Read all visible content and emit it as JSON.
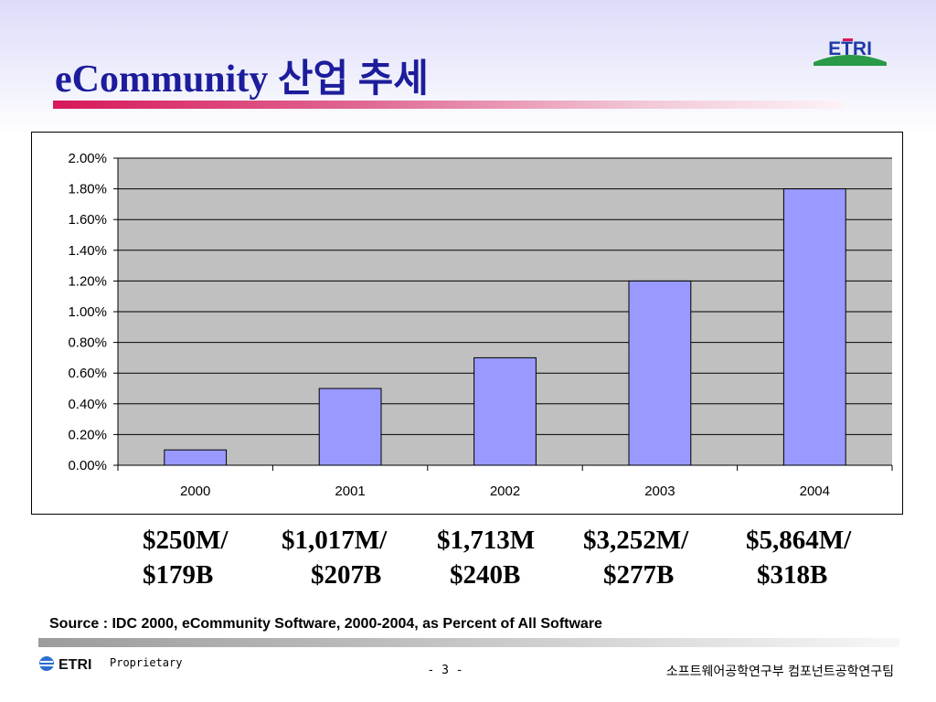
{
  "slide": {
    "title": "eCommunity 산업 추세",
    "logo_text": "ETRI",
    "source": "Source : IDC 2000,  eCommunity Software, 2000-2004, as Percent of All Software",
    "footer": {
      "logo_text": "ETRI",
      "proprietary": "Proprietary",
      "page_number": "- 3 -",
      "organization": "소프트웨어공학연구부  컴포넌트공학연구팀"
    }
  },
  "colors": {
    "title": "#1c1c9c",
    "bar_fill": "#9999ff",
    "plot_background": "#c0c0c0",
    "accent_bar": "#d8185a"
  },
  "chart_data": {
    "type": "bar",
    "categories": [
      "2000",
      "2001",
      "2002",
      "2003",
      "2004"
    ],
    "values": [
      0.1,
      0.5,
      0.7,
      1.2,
      1.8
    ],
    "ylim": [
      0,
      2.0
    ],
    "yticks": [
      "0.00%",
      "0.20%",
      "0.40%",
      "0.60%",
      "0.80%",
      "1.00%",
      "1.20%",
      "1.40%",
      "1.60%",
      "1.80%",
      "2.00%"
    ],
    "grid": true,
    "legend": "none",
    "annotations": [
      {
        "line1": "$250M/",
        "line2": "$179B"
      },
      {
        "line1": "$1,017M/",
        "line2": "$207B"
      },
      {
        "line1": "$1,713M",
        "line2": "$240B"
      },
      {
        "line1": "$3,252M/",
        "line2": "$277B"
      },
      {
        "line1": "$5,864M/",
        "line2": "$318B"
      }
    ]
  }
}
